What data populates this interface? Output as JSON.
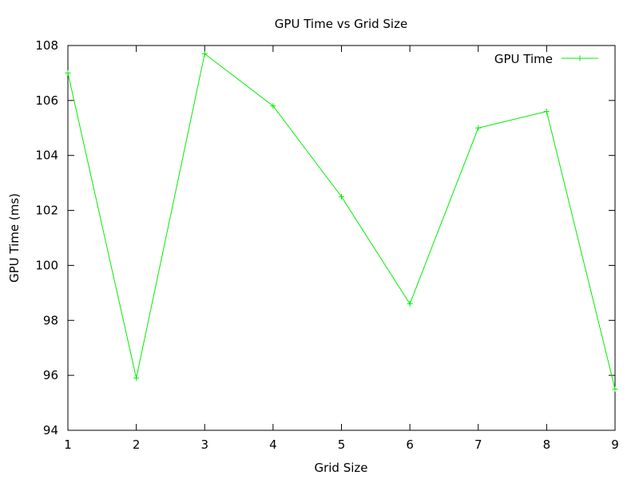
{
  "chart_data": {
    "type": "line",
    "title": "GPU Time vs Grid Size",
    "xlabel": "Grid Size",
    "ylabel": "GPU Time (ms)",
    "xlim": [
      1,
      9
    ],
    "ylim": [
      94,
      108
    ],
    "x_ticks": [
      "1",
      "2",
      "3",
      "4",
      "5",
      "6",
      "7",
      "8",
      "9"
    ],
    "y_ticks": [
      "94",
      "96",
      "98",
      "100",
      "102",
      "104",
      "106",
      "108"
    ],
    "grid": false,
    "legend_position": "top-right",
    "series": [
      {
        "name": "GPU Time",
        "color": "#00ee00",
        "marker": "plus",
        "x": [
          1,
          2,
          3,
          4,
          5,
          6,
          7,
          8,
          9
        ],
        "y": [
          107.0,
          95.9,
          107.7,
          105.8,
          102.5,
          98.6,
          105.0,
          105.6,
          95.5
        ]
      }
    ]
  }
}
